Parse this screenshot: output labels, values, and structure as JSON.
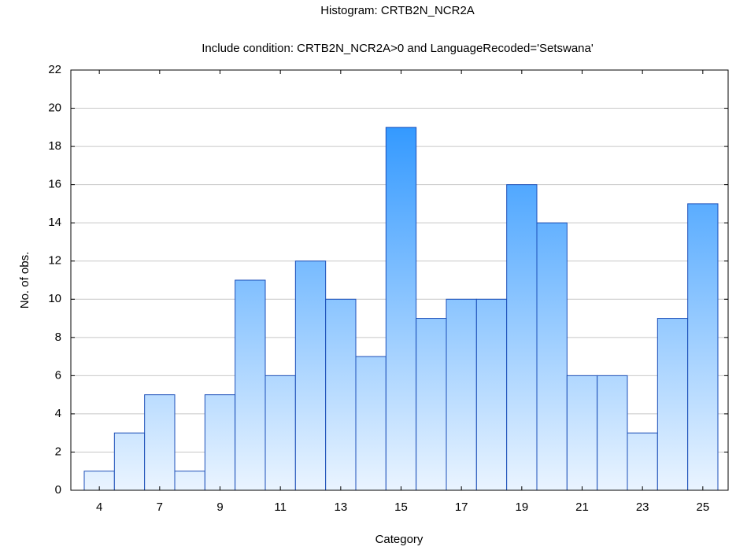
{
  "chart_data": {
    "type": "bar",
    "title": "Histogram: CRTB2N_NCR2A",
    "subtitle": "Include condition: CRTB2N_NCR2A>0 and LanguageRecoded='Setswana'",
    "xlabel": "Category",
    "ylabel": "No. of obs.",
    "categories": [
      "4",
      null,
      "7",
      null,
      "9",
      null,
      "11",
      null,
      "13",
      null,
      "15",
      null,
      "17",
      null,
      "19",
      null,
      "21",
      null,
      "23",
      null,
      "25"
    ],
    "values": [
      1,
      3,
      5,
      1,
      5,
      11,
      6,
      12,
      10,
      7,
      19,
      9,
      10,
      10,
      16,
      14,
      6,
      6,
      3,
      9,
      15
    ],
    "color": "#3399ff",
    "edge_color": "#1c4fb8",
    "ylim": [
      0,
      22
    ],
    "yticks": [
      0,
      2,
      4,
      6,
      8,
      10,
      12,
      14,
      16,
      18,
      20,
      22
    ],
    "grid": true
  }
}
